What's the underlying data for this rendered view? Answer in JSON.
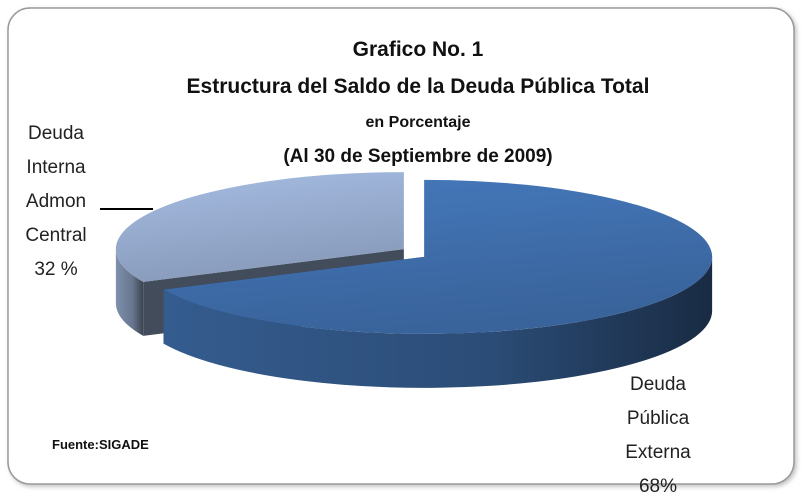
{
  "chart_data": {
    "type": "pie3d",
    "title": "Grafico  No. 1",
    "subtitle": [
      "Estructura del Saldo de la Deuda Pública Total",
      "en Porcentaje",
      "(Al 30 de Septiembre de 2009)"
    ],
    "categories": [
      "Deuda Pública Externa",
      "Deuda Interna Admon Central"
    ],
    "values": [
      68,
      32
    ],
    "value_labels": [
      "68%",
      "32 %"
    ],
    "colors": [
      "#3e6ca8",
      "#94a9cb"
    ],
    "source": "Fuente:SIGADE"
  }
}
